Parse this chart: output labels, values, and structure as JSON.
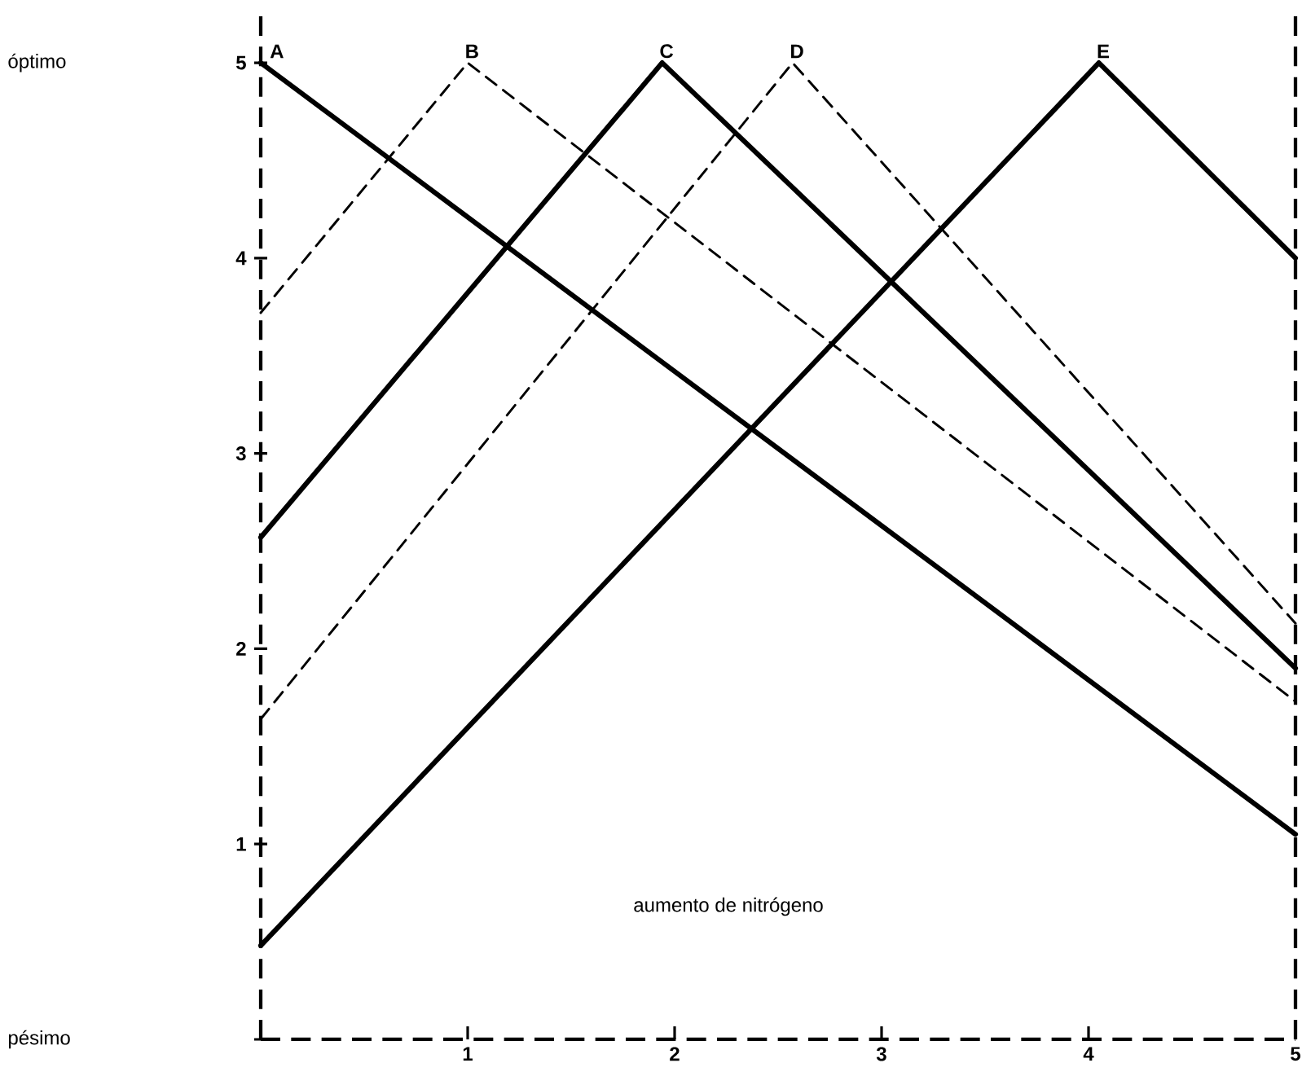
{
  "chart_data": {
    "type": "line",
    "xlabel": "aumento de nitrógeno",
    "xlim": [
      0,
      5
    ],
    "ylim": [
      0,
      5.28
    ],
    "xticks": [
      1,
      2,
      3,
      4,
      5
    ],
    "yticks": [
      {
        "value": 0,
        "label": null
      },
      1,
      2,
      3,
      4,
      5
    ],
    "annotations": [
      "óptimo",
      "pésimo"
    ],
    "grid": false,
    "legend": false,
    "marker": "none",
    "series": [
      {
        "name": "A",
        "color": "#000000",
        "line_style": "solid",
        "x": [
          0,
          5
        ],
        "values": [
          5,
          1.05
        ]
      },
      {
        "name": "B",
        "color": "#000000",
        "line_style": "dashed",
        "x": [
          0,
          1,
          5
        ],
        "values": [
          3.72,
          5,
          1.73
        ]
      },
      {
        "name": "C",
        "color": "#000000",
        "line_style": "solid",
        "x": [
          0,
          1.94,
          5
        ],
        "values": [
          2.57,
          5,
          1.9
        ]
      },
      {
        "name": "D",
        "color": "#000000",
        "line_style": "dashed",
        "x": [
          0,
          2.57,
          5
        ],
        "values": [
          1.64,
          5,
          2.13
        ]
      },
      {
        "name": "E",
        "color": "#000000",
        "line_style": "solid",
        "x": [
          0,
          4.05,
          5
        ],
        "values": [
          0.48,
          5,
          4.0
        ]
      }
    ]
  }
}
